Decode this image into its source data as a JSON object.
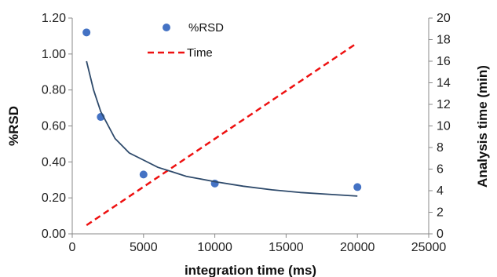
{
  "chart_data": {
    "type": "scatter",
    "xlabel": "integration time (ms)",
    "ylabel_left": "%RSD",
    "ylabel_right": "Analysis time (min)",
    "xlim": [
      0,
      25000
    ],
    "ylim_left": [
      0,
      1.2
    ],
    "ylim_right": [
      0,
      20
    ],
    "x_ticks": [
      "0",
      "5000",
      "10000",
      "15000",
      "20000",
      "25000"
    ],
    "y_left_ticks": [
      "0.00",
      "0.20",
      "0.40",
      "0.60",
      "0.80",
      "1.00",
      "1.20"
    ],
    "y_right_ticks": [
      "0",
      "2",
      "4",
      "6",
      "8",
      "10",
      "12",
      "14",
      "16",
      "18",
      "20"
    ],
    "grid": false,
    "legend_position": "top-left",
    "series": [
      {
        "name": "%RSD",
        "kind": "scatter",
        "axis": "left",
        "color": "#4472C4",
        "x": [
          1000,
          2000,
          5000,
          10000,
          20000
        ],
        "y": [
          1.12,
          0.65,
          0.33,
          0.28,
          0.26
        ]
      },
      {
        "name": "Time",
        "kind": "line",
        "style": "dashed",
        "axis": "right",
        "color": "#EE1111",
        "x": [
          1000,
          20000
        ],
        "y": [
          0.8,
          17.7
        ]
      },
      {
        "kind": "line",
        "style": "solid",
        "axis": "left",
        "color": "#2E4A6B",
        "x": [
          1000,
          1500,
          2000,
          3000,
          4000,
          5000,
          6000,
          7000,
          8000,
          10000,
          12000,
          14000,
          16000,
          18000,
          20000
        ],
        "y": [
          0.96,
          0.8,
          0.68,
          0.53,
          0.45,
          0.41,
          0.37,
          0.345,
          0.32,
          0.29,
          0.265,
          0.245,
          0.23,
          0.22,
          0.21
        ]
      }
    ]
  }
}
